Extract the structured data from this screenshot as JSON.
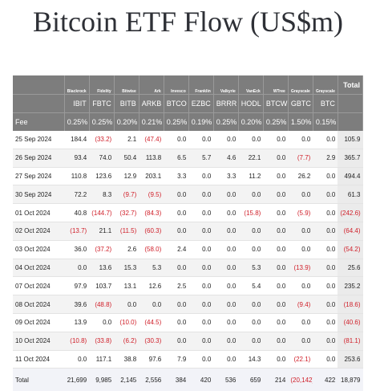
{
  "title": "Bitcoin ETF Flow (US$m)",
  "columns": [
    {
      "issuer": "Blackrock",
      "ticker": "IBIT",
      "fee": "0.25%"
    },
    {
      "issuer": "Fidelity",
      "ticker": "FBTC",
      "fee": "0.25%"
    },
    {
      "issuer": "Bitwise",
      "ticker": "BITB",
      "fee": "0.20%"
    },
    {
      "issuer": "Ark",
      "ticker": "ARKB",
      "fee": "0.21%"
    },
    {
      "issuer": "Invesco",
      "ticker": "BTCO",
      "fee": "0.25%"
    },
    {
      "issuer": "Franklin",
      "ticker": "EZBC",
      "fee": "0.19%"
    },
    {
      "issuer": "Valkyrie",
      "ticker": "BRRR",
      "fee": "0.25%"
    },
    {
      "issuer": "VanEck",
      "ticker": "HODL",
      "fee": "0.20%"
    },
    {
      "issuer": "WTree",
      "ticker": "BTCW",
      "fee": "0.25%"
    },
    {
      "issuer": "Grayscale",
      "ticker": "GBTC",
      "fee": "1.50%"
    },
    {
      "issuer": "Grayscale",
      "ticker": "BTC",
      "fee": "0.15%"
    }
  ],
  "total_header": "Total",
  "fee_label": "Fee",
  "rows": [
    {
      "date": "25 Sep 2024",
      "values": [
        "184.4",
        "(33.2)",
        "2.1",
        "(47.4)",
        "0.0",
        "0.0",
        "0.0",
        "0.0",
        "0.0",
        "0.0",
        "0.0"
      ],
      "total": "105.9"
    },
    {
      "date": "26 Sep 2024",
      "values": [
        "93.4",
        "74.0",
        "50.4",
        "113.8",
        "6.5",
        "5.7",
        "4.6",
        "22.1",
        "0.0",
        "(7.7)",
        "2.9"
      ],
      "total": "365.7"
    },
    {
      "date": "27 Sep 2024",
      "values": [
        "110.8",
        "123.6",
        "12.9",
        "203.1",
        "3.3",
        "0.0",
        "3.3",
        "11.2",
        "0.0",
        "26.2",
        "0.0"
      ],
      "total": "494.4"
    },
    {
      "date": "30 Sep 2024",
      "values": [
        "72.2",
        "8.3",
        "(9.7)",
        "(9.5)",
        "0.0",
        "0.0",
        "0.0",
        "0.0",
        "0.0",
        "0.0",
        "0.0"
      ],
      "total": "61.3"
    },
    {
      "date": "01 Oct 2024",
      "values": [
        "40.8",
        "(144.7)",
        "(32.7)",
        "(84.3)",
        "0.0",
        "0.0",
        "0.0",
        "(15.8)",
        "0.0",
        "(5.9)",
        "0.0"
      ],
      "total": "(242.6)"
    },
    {
      "date": "02 Oct 2024",
      "values": [
        "(13.7)",
        "21.1",
        "(11.5)",
        "(60.3)",
        "0.0",
        "0.0",
        "0.0",
        "0.0",
        "0.0",
        "0.0",
        "0.0"
      ],
      "total": "(64.4)"
    },
    {
      "date": "03 Oct 2024",
      "values": [
        "36.0",
        "(37.2)",
        "2.6",
        "(58.0)",
        "2.4",
        "0.0",
        "0.0",
        "0.0",
        "0.0",
        "0.0",
        "0.0"
      ],
      "total": "(54.2)"
    },
    {
      "date": "04 Oct 2024",
      "values": [
        "0.0",
        "13.6",
        "15.3",
        "5.3",
        "0.0",
        "0.0",
        "0.0",
        "5.3",
        "0.0",
        "(13.9)",
        "0.0"
      ],
      "total": "25.6"
    },
    {
      "date": "07 Oct 2024",
      "values": [
        "97.9",
        "103.7",
        "13.1",
        "12.6",
        "2.5",
        "0.0",
        "0.0",
        "5.4",
        "0.0",
        "0.0",
        "0.0"
      ],
      "total": "235.2"
    },
    {
      "date": "08 Oct 2024",
      "values": [
        "39.6",
        "(48.8)",
        "0.0",
        "0.0",
        "0.0",
        "0.0",
        "0.0",
        "0.0",
        "0.0",
        "(9.4)",
        "0.0"
      ],
      "total": "(18.6)"
    },
    {
      "date": "09 Oct 2024",
      "values": [
        "13.9",
        "0.0",
        "(10.0)",
        "(44.5)",
        "0.0",
        "0.0",
        "0.0",
        "0.0",
        "0.0",
        "0.0",
        "0.0"
      ],
      "total": "(40.6)"
    },
    {
      "date": "10 Oct 2024",
      "values": [
        "(10.8)",
        "(33.8)",
        "(6.2)",
        "(30.3)",
        "0.0",
        "0.0",
        "0.0",
        "0.0",
        "0.0",
        "0.0",
        "0.0"
      ],
      "total": "(81.1)"
    },
    {
      "date": "11 Oct 2024",
      "values": [
        "0.0",
        "117.1",
        "38.8",
        "97.6",
        "7.9",
        "0.0",
        "0.0",
        "14.3",
        "0.0",
        "(22.1)",
        "0.0"
      ],
      "total": "253.6"
    }
  ],
  "totals": {
    "label": "Total",
    "values": [
      "21,699",
      "9,985",
      "2,145",
      "2,556",
      "384",
      "420",
      "536",
      "659",
      "214",
      "(20,142)",
      "422"
    ],
    "total": "18,879"
  },
  "negative_color": "#d0202a",
  "header_color": "#7d7d7d"
}
